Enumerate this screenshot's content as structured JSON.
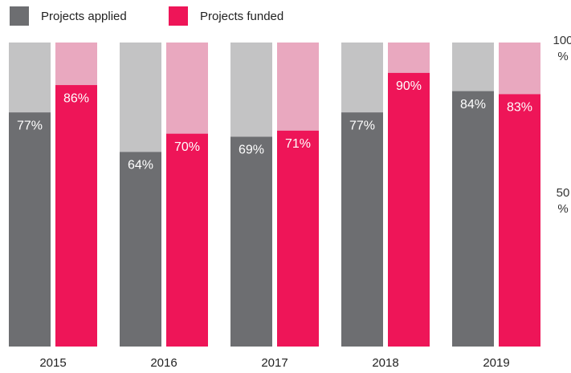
{
  "chart_data": {
    "type": "bar",
    "categories": [
      "2015",
      "2016",
      "2017",
      "2018",
      "2019"
    ],
    "series": [
      {
        "name": "Projects applied",
        "color": "#6d6e71",
        "track_color": "#c3c3c4",
        "values": [
          77,
          64,
          69,
          77,
          84
        ],
        "value_labels": [
          "77%",
          "64%",
          "69%",
          "77%",
          "84%"
        ]
      },
      {
        "name": "Projects funded",
        "color": "#ee1558",
        "track_color": "#e9a8bf",
        "values": [
          86,
          70,
          71,
          90,
          83
        ],
        "value_labels": [
          "86%",
          "70%",
          "71%",
          "90%",
          "83%"
        ]
      }
    ],
    "ylim": [
      0,
      100
    ],
    "yticks": [
      {
        "value": 50,
        "label": "50 %"
      },
      {
        "value": 100,
        "label": "100 %"
      }
    ],
    "legend": "top-left"
  }
}
